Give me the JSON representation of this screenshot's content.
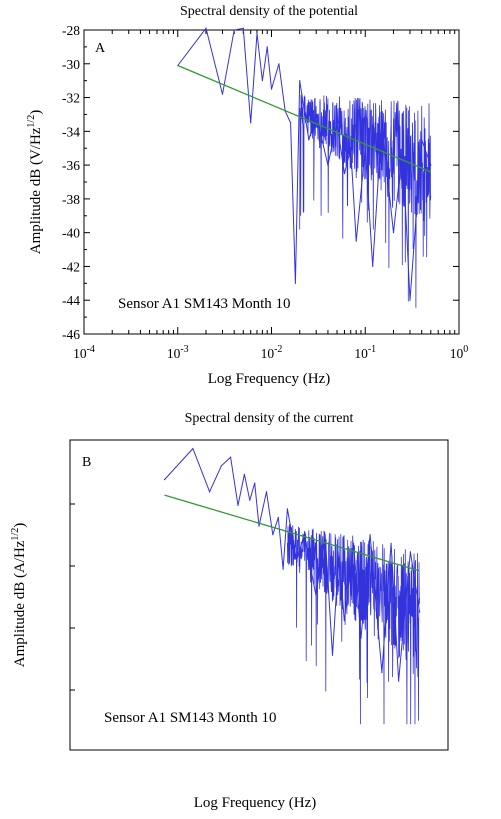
{
  "chart_data": [
    {
      "type": "line",
      "panel_label": "A",
      "title": "Spectral density of the potential",
      "xlabel": "Log Frequency (Hz)",
      "ylabel_main": "Amplitude dB (V/Hz",
      "ylabel_sup": "1/2",
      "ylabel_close": ")",
      "x_scale": "log",
      "xlim": [
        0.0001,
        1
      ],
      "ylim": [
        -46,
        -28
      ],
      "x_ticks": [
        {
          "value": 0.0001,
          "base": "10",
          "exp": "-4"
        },
        {
          "value": 0.001,
          "base": "10",
          "exp": "-3"
        },
        {
          "value": 0.01,
          "base": "10",
          "exp": "-2"
        },
        {
          "value": 0.1,
          "base": "10",
          "exp": "-1"
        },
        {
          "value": 1,
          "base": "10",
          "exp": "0"
        }
      ],
      "y_ticks": [
        {
          "value": -28,
          "label": "-28"
        },
        {
          "value": -30,
          "label": "-30"
        },
        {
          "value": -32,
          "label": "-32"
        },
        {
          "value": -34,
          "label": "-34"
        },
        {
          "value": -36,
          "label": "-36"
        },
        {
          "value": -38,
          "label": "-38"
        },
        {
          "value": -40,
          "label": "-40"
        },
        {
          "value": -42,
          "label": "-42"
        },
        {
          "value": -44,
          "label": "-44"
        },
        {
          "value": -46,
          "label": "-46"
        }
      ],
      "annotation": "Sensor A1 SM143 Month 10",
      "series": [
        {
          "role": "spectrum",
          "color": "#3333dd",
          "x": [
            0.001,
            0.002,
            0.003,
            0.004,
            0.005,
            0.006,
            0.007,
            0.008,
            0.009,
            0.01,
            0.012,
            0.014,
            0.016,
            0.018,
            0.02,
            0.025,
            0.03,
            0.04,
            0.05,
            0.06,
            0.07,
            0.08,
            0.1,
            0.12,
            0.15,
            0.2,
            0.25,
            0.3,
            0.4,
            0.5
          ],
          "y": [
            -30.1,
            -27.9,
            -31.8,
            -28.0,
            -27.9,
            -33.5,
            -28.2,
            -31.0,
            -29.0,
            -31.5,
            -30.0,
            -32.8,
            -33.5,
            -43.0,
            -31.0,
            -34.5,
            -33.0,
            -36.0,
            -33.5,
            -36.5,
            -35.0,
            -40.5,
            -35.0,
            -42.0,
            -33.5,
            -40.0,
            -35.0,
            -44.0,
            -34.5,
            -36.0
          ]
        },
        {
          "role": "fit",
          "color": "#339933",
          "x": [
            0.001,
            0.5
          ],
          "y": [
            -30.1,
            -36.4
          ]
        }
      ]
    },
    {
      "type": "line",
      "panel_label": "B",
      "title": "Spectral density of the current",
      "xlabel": "Log Frequency (Hz)",
      "ylabel_main": "Amplitude dB (A/Hz",
      "ylabel_sup": "1/2",
      "ylabel_close": ")",
      "x_scale": "log",
      "xlim": [
        0.0001,
        1
      ],
      "ylim": [
        -46,
        -28
      ],
      "x_ticks": [],
      "y_ticks": [],
      "annotation": "Sensor A1 SM143 Month 10",
      "series": [
        {
          "role": "spectrum",
          "color": "#3333dd",
          "x": [
            0.001,
            0.002,
            0.003,
            0.004,
            0.005,
            0.006,
            0.007,
            0.008,
            0.009,
            0.01,
            0.012,
            0.014,
            0.016,
            0.018,
            0.02,
            0.025,
            0.03,
            0.04,
            0.05,
            0.06,
            0.07,
            0.08,
            0.1,
            0.12,
            0.15,
            0.2,
            0.25,
            0.3,
            0.4,
            0.5
          ],
          "y": [
            -30.3,
            -28.5,
            -31.0,
            -29.5,
            -29.0,
            -31.8,
            -30.0,
            -31.5,
            -30.5,
            -33.0,
            -31.0,
            -33.5,
            -32.5,
            -35.5,
            -32.0,
            -35.0,
            -33.5,
            -37.0,
            -33.5,
            -40.5,
            -34.5,
            -38.5,
            -34.0,
            -39.5,
            -33.5,
            -41.5,
            -34.0,
            -42.0,
            -34.5,
            -38.0
          ]
        },
        {
          "role": "fit",
          "color": "#339933",
          "x": [
            0.001,
            0.5
          ],
          "y": [
            -31.2,
            -35.6
          ]
        }
      ]
    }
  ]
}
